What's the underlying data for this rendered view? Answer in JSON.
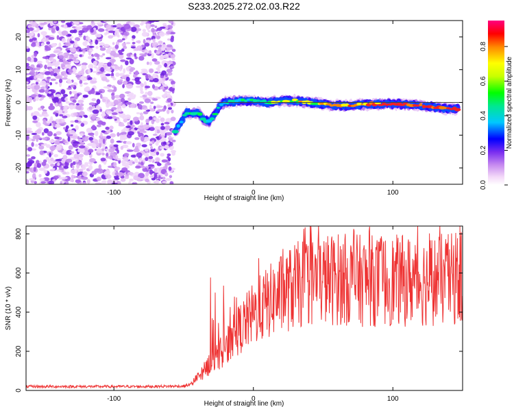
{
  "title": "S233.2025.272.02.03.R22",
  "chart_data": [
    {
      "type": "heatmap",
      "xlabel": "Height of straight line (km)",
      "ylabel": "Frequency (Hz)",
      "xlim": [
        -163,
        150
      ],
      "ylim": [
        -25,
        25
      ],
      "x_ticks": [
        -100,
        0,
        100
      ],
      "y_ticks": [
        -20,
        -10,
        0,
        10,
        20
      ],
      "zero_line_y": 0,
      "noise_region_x": [
        -163,
        -57
      ],
      "signal_ridge": {
        "x": [
          -56,
          -52,
          -48,
          -44,
          -40,
          -36,
          -32,
          -28,
          -24,
          -20,
          -10,
          0,
          10,
          20,
          30,
          40,
          50,
          60,
          70,
          80,
          90,
          100,
          110,
          120,
          130,
          140,
          147
        ],
        "y": [
          -9,
          -6,
          -3,
          -3.5,
          -3,
          -5,
          -6,
          -4,
          -1,
          0,
          0.5,
          0.5,
          0,
          0.5,
          0.5,
          0,
          -0.5,
          -1,
          -1,
          -0.5,
          -0.5,
          -0.5,
          -0.5,
          -1,
          -1.5,
          -2,
          -2
        ]
      },
      "colorbar": {
        "label": "Normalized spectral amplitude",
        "ticks": [
          0.0,
          0.2,
          0.4,
          0.6,
          0.8
        ],
        "range": [
          0,
          0.95
        ]
      }
    },
    {
      "type": "line",
      "xlabel": "Height of straight line (km)",
      "ylabel": "SNR (10 * v/v)",
      "xlim": [
        -163,
        150
      ],
      "ylim": [
        0,
        840
      ],
      "x_ticks": [
        -100,
        0,
        100
      ],
      "y_ticks": [
        0,
        200,
        400,
        600,
        800
      ],
      "series": [
        {
          "name": "SNR",
          "color": "#ee3333",
          "envelope_x": [
            -163,
            -120,
            -80,
            -50,
            -45,
            -40,
            -30,
            -20,
            -10,
            0,
            10,
            20,
            30,
            40,
            60,
            80,
            100,
            120,
            150
          ],
          "envelope_y": [
            20,
            20,
            20,
            22,
            30,
            70,
            150,
            230,
            330,
            410,
            470,
            520,
            560,
            590,
            600,
            590,
            590,
            590,
            600
          ]
        }
      ]
    }
  ],
  "colors": {
    "axis": "#000000",
    "line": "#ee3333",
    "zero_line": "#444444"
  }
}
